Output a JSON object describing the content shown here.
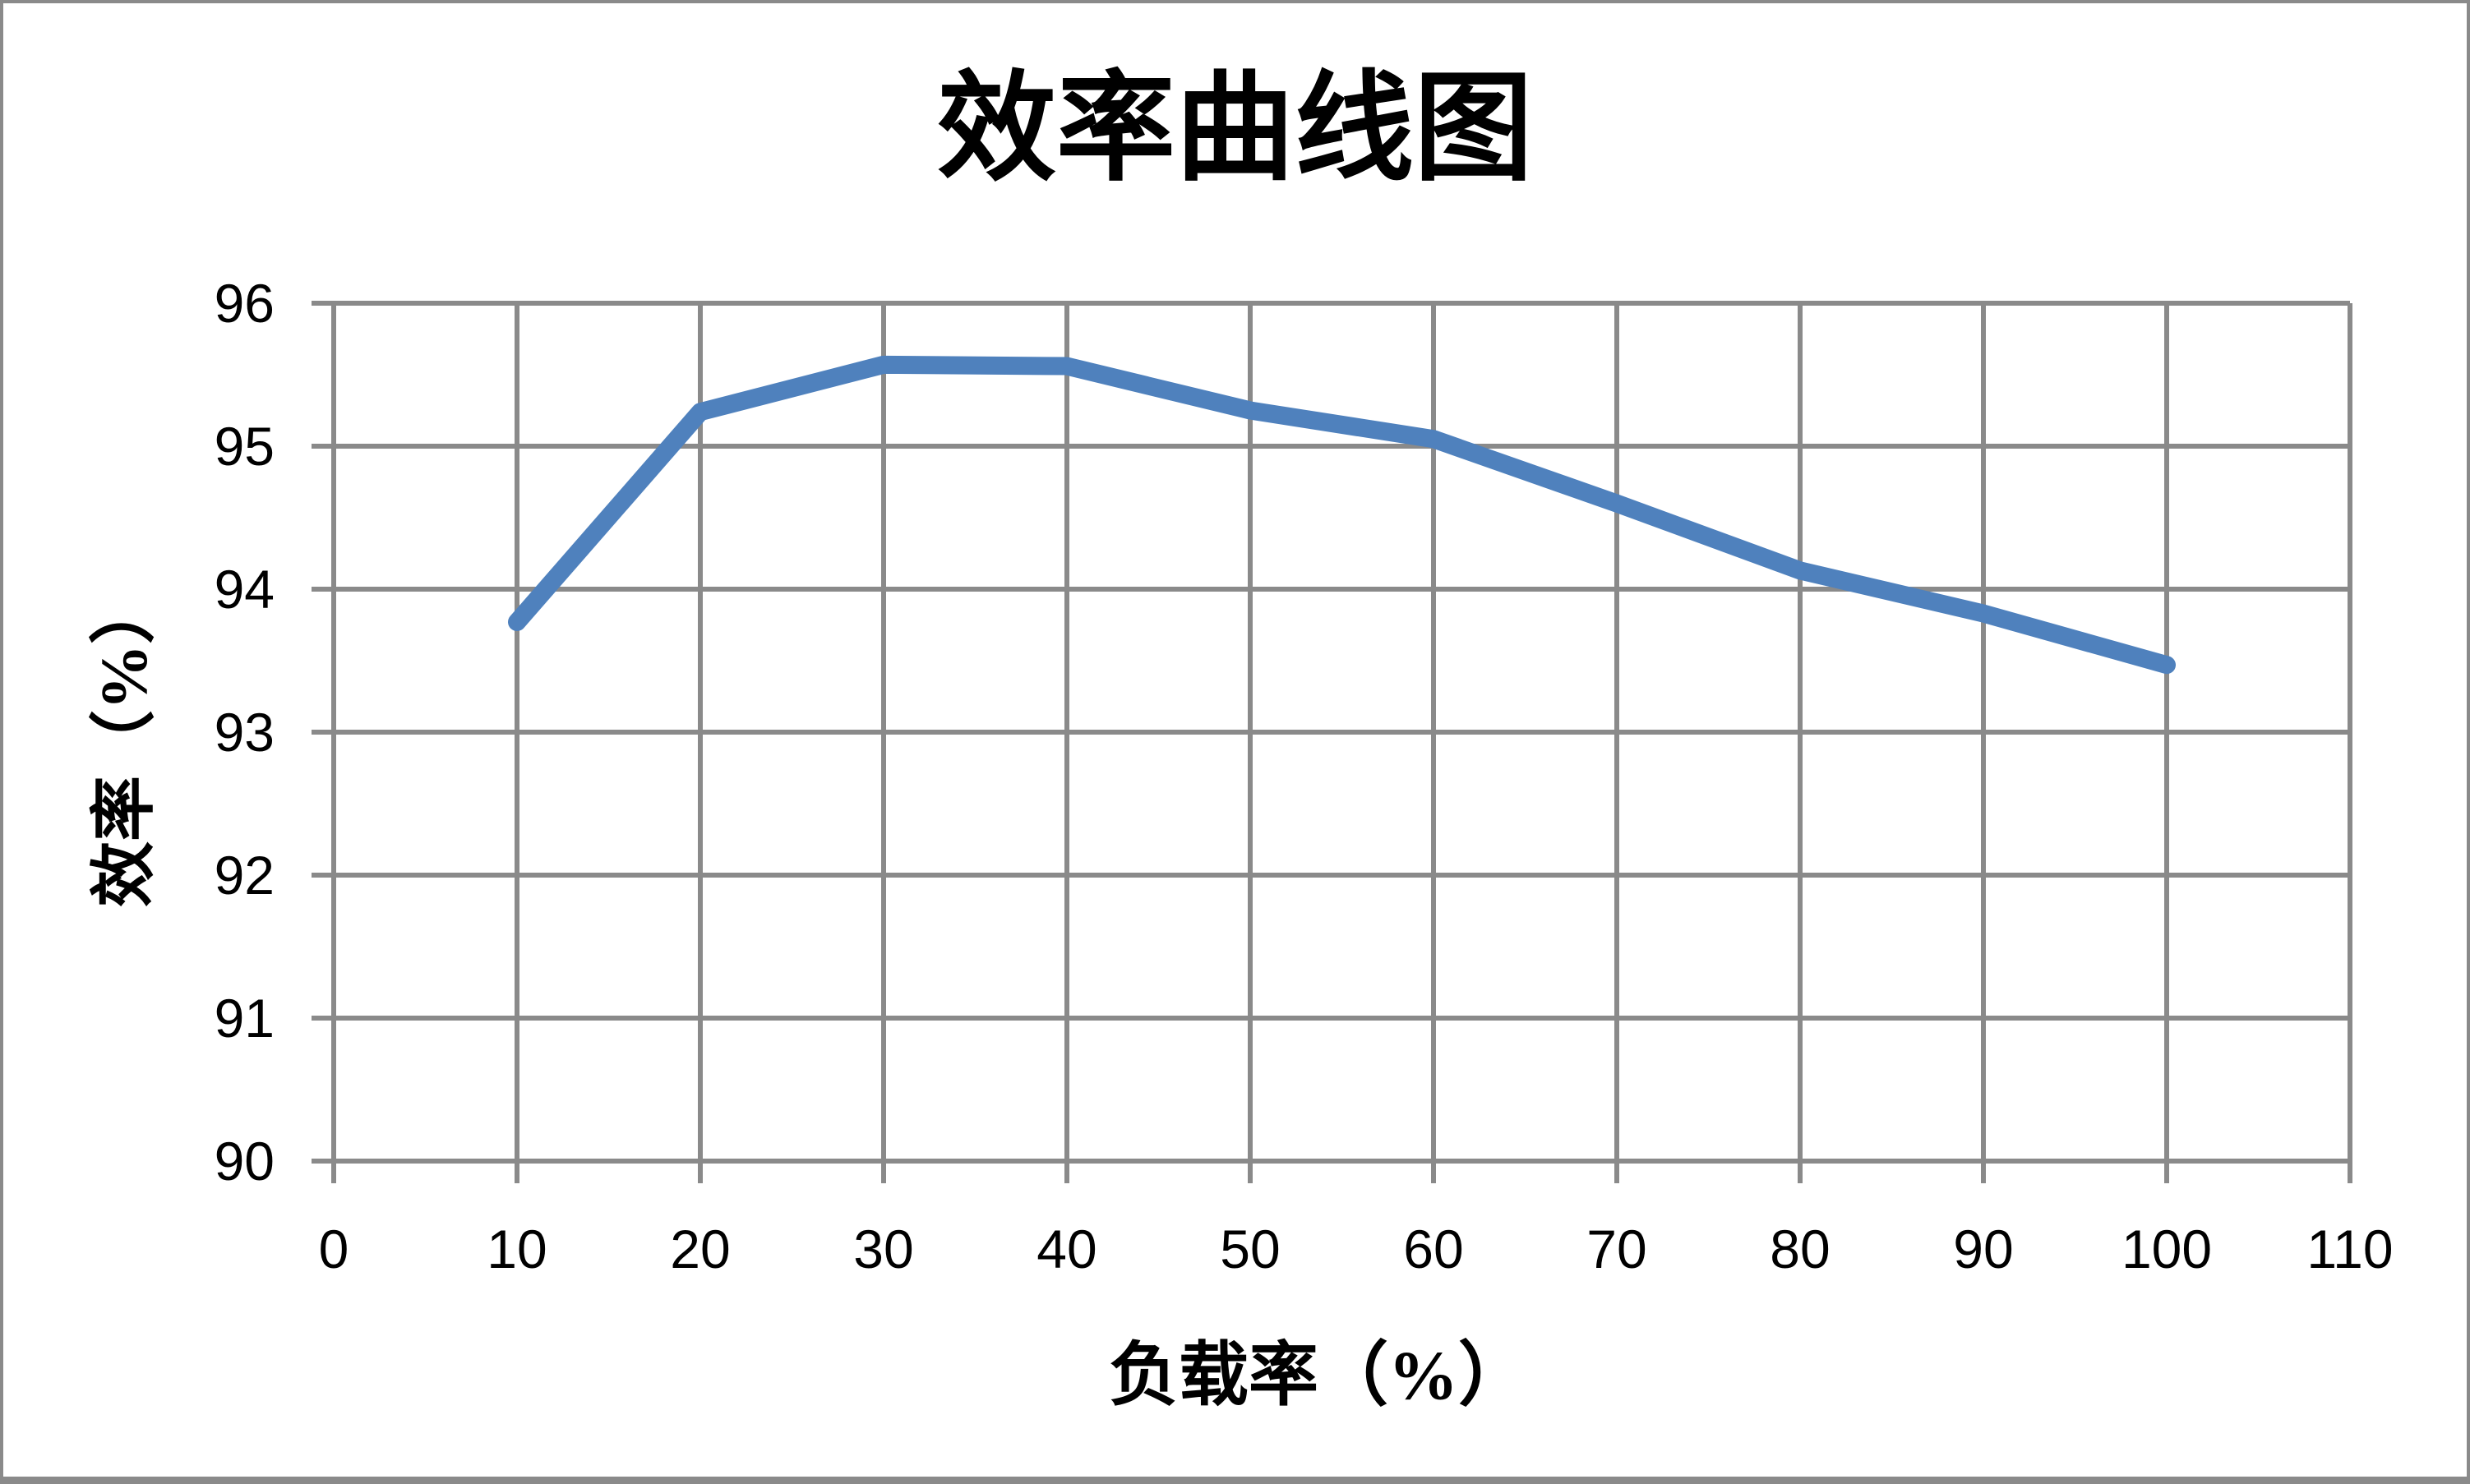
{
  "chart_data": {
    "type": "line",
    "title": "效率曲线图",
    "xlabel": "负载率（%）",
    "ylabel": "效率（%）",
    "x": [
      10,
      20,
      30,
      40,
      50,
      60,
      70,
      80,
      90,
      100
    ],
    "y": [
      93.77,
      95.24,
      95.57,
      95.56,
      95.25,
      95.05,
      94.6,
      94.13,
      93.83,
      93.47
    ],
    "xlim": [
      0,
      110
    ],
    "ylim": [
      90,
      96
    ],
    "xticks": [
      0,
      10,
      20,
      30,
      40,
      50,
      60,
      70,
      80,
      90,
      100,
      110
    ],
    "yticks": [
      90,
      91,
      92,
      93,
      94,
      95,
      96
    ],
    "grid": true,
    "legend": false
  },
  "colors": {
    "line": "#4F81BD",
    "grid": "#8A8A8A",
    "border": "#8A8A8A",
    "text": "#000000",
    "background": "#FFFFFF"
  }
}
